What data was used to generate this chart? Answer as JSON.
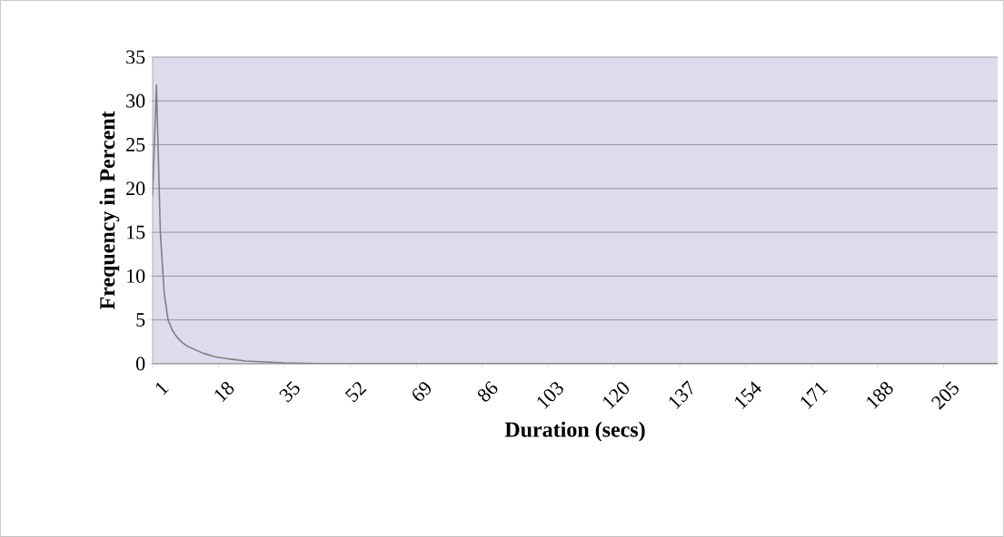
{
  "chart_data": {
    "type": "line",
    "xlabel": "Duration (secs)",
    "ylabel": "Frequency in Percent",
    "x": [
      1,
      2,
      3,
      4,
      5,
      6,
      7,
      8,
      9,
      10,
      12,
      14,
      17,
      20,
      25,
      30,
      35,
      45,
      60,
      100,
      150,
      219
    ],
    "values": [
      19.2,
      31.8,
      15,
      8,
      5,
      3.9,
      3.2,
      2.7,
      2.3,
      2,
      1.6,
      1.2,
      0.8,
      0.6,
      0.3,
      0.2,
      0.1,
      0,
      0,
      0,
      0,
      0
    ],
    "color": "#808080",
    "xlim": [
      1,
      219
    ],
    "xticks": [
      1,
      18,
      35,
      52,
      69,
      86,
      103,
      120,
      137,
      154,
      171,
      188,
      205
    ],
    "ylim": [
      0,
      35
    ],
    "yticks": [
      0,
      5,
      10,
      15,
      20,
      25,
      30,
      35
    ],
    "grid": "y",
    "marker": "none",
    "line_style": "solid"
  }
}
